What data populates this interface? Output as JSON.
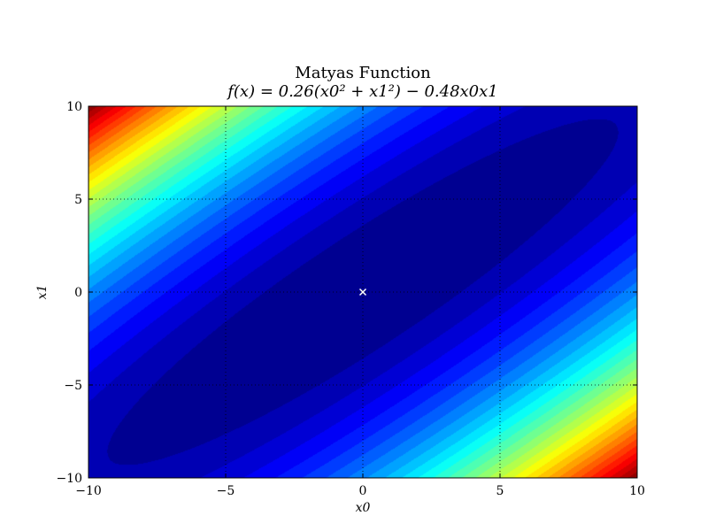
{
  "chart_data": {
    "type": "heatmap",
    "subtype": "filled-contour",
    "title": "Matyas Function",
    "subtitle": "f(x) = 0.26(x0² + x1²) − 0.48x0x1",
    "xlabel": "x0",
    "ylabel": "x1",
    "xlim": [
      -10,
      10
    ],
    "ylim": [
      -10,
      10
    ],
    "x_ticks": [
      -10,
      -5,
      0,
      5,
      10
    ],
    "y_ticks": [
      -10,
      -5,
      0,
      5,
      10
    ],
    "x_tick_labels": [
      "−10",
      "−5",
      "0",
      "5",
      "10"
    ],
    "y_tick_labels": [
      "−10",
      "−5",
      "0",
      "5",
      "10"
    ],
    "function": {
      "a": 0.26,
      "b": -0.48
    },
    "z_range": [
      0,
      100
    ],
    "contour_levels": 30,
    "colormap": "jet",
    "grid": true,
    "grid_style": "dotted",
    "minimum_marker": {
      "x": 0,
      "y": 0,
      "symbol": "x",
      "color": "#ffffff"
    }
  }
}
